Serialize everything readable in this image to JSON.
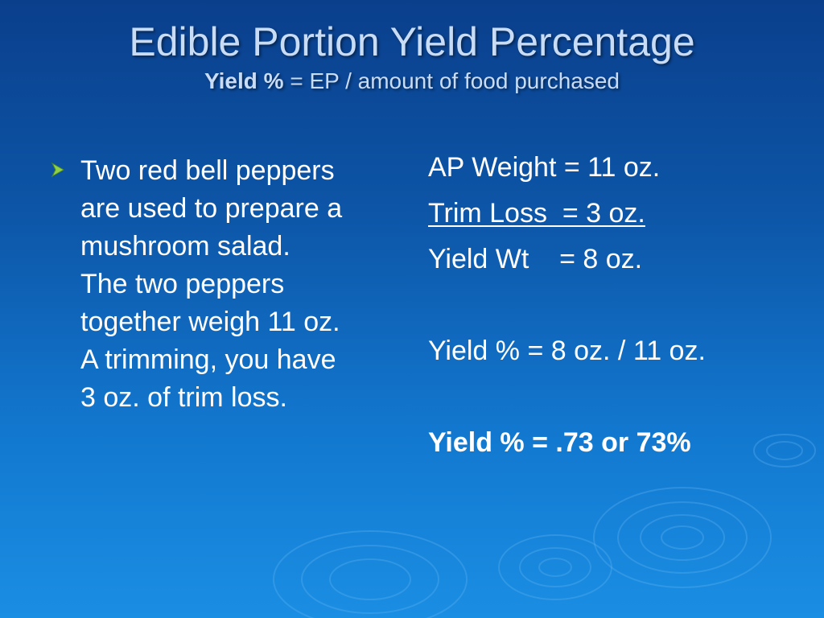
{
  "title": "Edible Portion Yield Percentage",
  "subtitle": {
    "bold_part": "Yield %",
    "rest": " = EP / amount of food purchased"
  },
  "bullet": {
    "icon": "arrow-bullet-icon",
    "lines": [
      "Two red bell peppers",
      "are used to prepare a",
      "mushroom salad.",
      "The two peppers",
      "together weigh 11 oz.",
      "A trimming, you have",
      "3 oz. of trim loss."
    ]
  },
  "calculation": {
    "ap_weight": "AP Weight = 11 oz.",
    "trim_loss": "Trim Loss  = 3 oz.",
    "yield_wt": "Yield Wt    = 8 oz.",
    "yield_formula": "Yield % = 8 oz. / 11 oz.",
    "yield_result": "Yield % = .73 or 73%"
  },
  "colors": {
    "title": "#c9dcf5",
    "body_text": "#ffffff",
    "bullet_arrow": "#8fd24a",
    "background_top": "#0a3f8c",
    "background_bottom": "#1a8ee3"
  }
}
